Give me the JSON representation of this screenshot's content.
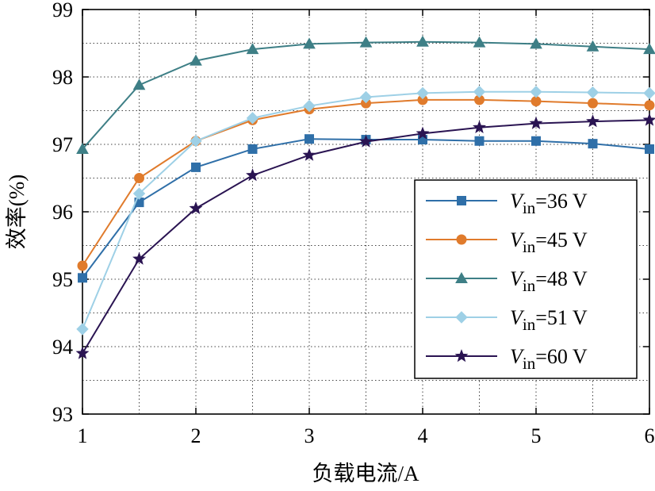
{
  "chart_data": {
    "type": "line",
    "title": "",
    "xlabel": "负载电流/A",
    "ylabel": "效率(%)",
    "xlim": [
      1,
      6
    ],
    "ylim": [
      93,
      99
    ],
    "xticks": [
      1,
      2,
      3,
      4,
      5,
      6
    ],
    "yticks": [
      93,
      94,
      95,
      96,
      97,
      98,
      99
    ],
    "grid": true,
    "legend_position": "lower-right",
    "x": [
      1,
      1.5,
      2,
      2.5,
      3,
      3.5,
      4,
      4.5,
      5,
      5.5,
      6
    ],
    "series": [
      {
        "name": "=36 V",
        "label_main": "V",
        "label_sub": "in",
        "label_rest": "=36 V",
        "marker": "square",
        "color": "#2f6fa8",
        "values": [
          95.02,
          96.14,
          96.66,
          96.93,
          97.08,
          97.07,
          97.07,
          97.05,
          97.05,
          97.01,
          96.93
        ]
      },
      {
        "name": "=45 V",
        "label_main": "V",
        "label_sub": "in",
        "label_rest": "=45 V",
        "marker": "circle",
        "color": "#e07b2c",
        "values": [
          95.2,
          96.5,
          97.05,
          97.36,
          97.52,
          97.61,
          97.66,
          97.66,
          97.64,
          97.61,
          97.58
        ]
      },
      {
        "name": "=48 V",
        "label_main": "V",
        "label_sub": "in",
        "label_rest": "=48 V",
        "marker": "triangle",
        "color": "#3e7f86",
        "values": [
          96.93,
          97.88,
          98.24,
          98.41,
          98.49,
          98.51,
          98.52,
          98.51,
          98.49,
          98.45,
          98.41
        ]
      },
      {
        "name": "=51 V",
        "label_main": "V",
        "label_sub": "in",
        "label_rest": "=51 V",
        "marker": "diamond",
        "color": "#9ed0e6",
        "values": [
          94.26,
          96.27,
          97.05,
          97.39,
          97.57,
          97.7,
          97.76,
          97.78,
          97.78,
          97.77,
          97.76
        ]
      },
      {
        "name": "=60 V",
        "label_main": "V",
        "label_sub": "in",
        "label_rest": "=60 V",
        "marker": "star",
        "color": "#2a1452",
        "values": [
          93.9,
          95.3,
          96.05,
          96.54,
          96.84,
          97.04,
          97.16,
          97.25,
          97.31,
          97.34,
          97.36
        ]
      }
    ]
  }
}
